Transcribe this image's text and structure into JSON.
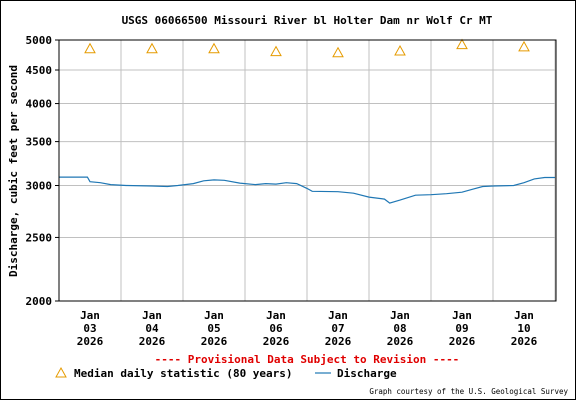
{
  "chart_data": {
    "type": "line",
    "title": "USGS 06066500 Missouri River bl Holter Dam nr Wolf Cr MT",
    "ylabel": "Discharge, cubic feet per second",
    "xlabel": "",
    "y_scale": "log",
    "ylim": [
      2000,
      5000
    ],
    "y_ticks": [
      2000,
      2500,
      3000,
      3500,
      4000,
      4500,
      5000
    ],
    "y_tick_labels": [
      "2000",
      "2500",
      "3000",
      "3500",
      "4000",
      "4500",
      "5000"
    ],
    "x_ticks": [
      {
        "month": "Jan",
        "day": "03",
        "year": "2026"
      },
      {
        "month": "Jan",
        "day": "04",
        "year": "2026"
      },
      {
        "month": "Jan",
        "day": "05",
        "year": "2026"
      },
      {
        "month": "Jan",
        "day": "06",
        "year": "2026"
      },
      {
        "month": "Jan",
        "day": "07",
        "year": "2026"
      },
      {
        "month": "Jan",
        "day": "08",
        "year": "2026"
      },
      {
        "month": "Jan",
        "day": "09",
        "year": "2026"
      },
      {
        "month": "Jan",
        "day": "10",
        "year": "2026"
      }
    ],
    "grid": true,
    "series": [
      {
        "name": "Discharge",
        "kind": "line",
        "color": "#1f77b4",
        "points": [
          {
            "x": "2026-01-02 12:00",
            "y": 3090
          },
          {
            "x": "2026-01-02 23:00",
            "y": 3090
          },
          {
            "x": "2026-01-03 00:00",
            "y": 3040
          },
          {
            "x": "2026-01-03 04:00",
            "y": 3030
          },
          {
            "x": "2026-01-03 08:00",
            "y": 3010
          },
          {
            "x": "2026-01-03 14:00",
            "y": 3000
          },
          {
            "x": "2026-01-04 00:00",
            "y": 2995
          },
          {
            "x": "2026-01-04 06:00",
            "y": 2990
          },
          {
            "x": "2026-01-04 10:00",
            "y": 3000
          },
          {
            "x": "2026-01-04 16:00",
            "y": 3020
          },
          {
            "x": "2026-01-04 20:00",
            "y": 3050
          },
          {
            "x": "2026-01-05 00:00",
            "y": 3060
          },
          {
            "x": "2026-01-05 04:00",
            "y": 3055
          },
          {
            "x": "2026-01-05 10:00",
            "y": 3025
          },
          {
            "x": "2026-01-05 16:00",
            "y": 3010
          },
          {
            "x": "2026-01-05 20:00",
            "y": 3020
          },
          {
            "x": "2026-01-06 00:00",
            "y": 3015
          },
          {
            "x": "2026-01-06 04:00",
            "y": 3030
          },
          {
            "x": "2026-01-06 08:00",
            "y": 3020
          },
          {
            "x": "2026-01-06 12:00",
            "y": 2970
          },
          {
            "x": "2026-01-06 14:00",
            "y": 2940
          },
          {
            "x": "2026-01-07 00:00",
            "y": 2935
          },
          {
            "x": "2026-01-07 06:00",
            "y": 2920
          },
          {
            "x": "2026-01-07 12:00",
            "y": 2880
          },
          {
            "x": "2026-01-07 18:00",
            "y": 2860
          },
          {
            "x": "2026-01-07 20:00",
            "y": 2820
          },
          {
            "x": "2026-01-08 00:00",
            "y": 2850
          },
          {
            "x": "2026-01-08 06:00",
            "y": 2900
          },
          {
            "x": "2026-01-08 12:00",
            "y": 2905
          },
          {
            "x": "2026-01-08 18:00",
            "y": 2915
          },
          {
            "x": "2026-01-09 00:00",
            "y": 2930
          },
          {
            "x": "2026-01-09 04:00",
            "y": 2960
          },
          {
            "x": "2026-01-09 08:00",
            "y": 2990
          },
          {
            "x": "2026-01-09 12:00",
            "y": 2995
          },
          {
            "x": "2026-01-09 20:00",
            "y": 3000
          },
          {
            "x": "2026-01-10 00:00",
            "y": 3030
          },
          {
            "x": "2026-01-10 04:00",
            "y": 3070
          },
          {
            "x": "2026-01-10 08:00",
            "y": 3085
          },
          {
            "x": "2026-01-10 12:00",
            "y": 3085
          }
        ]
      },
      {
        "name": "Median daily statistic (80 years)",
        "kind": "marker",
        "marker": "triangle",
        "color": "#e69b00",
        "points": [
          {
            "x": "2026-01-03 00:00",
            "y": 4850
          },
          {
            "x": "2026-01-04 00:00",
            "y": 4850
          },
          {
            "x": "2026-01-05 00:00",
            "y": 4850
          },
          {
            "x": "2026-01-06 00:00",
            "y": 4800
          },
          {
            "x": "2026-01-07 00:00",
            "y": 4780
          },
          {
            "x": "2026-01-08 00:00",
            "y": 4810
          },
          {
            "x": "2026-01-09 00:00",
            "y": 4920
          },
          {
            "x": "2026-01-10 00:00",
            "y": 4880
          }
        ]
      }
    ],
    "legend": [
      {
        "label": "Median daily statistic (80 years)",
        "symbol": "triangle"
      },
      {
        "label": "Discharge",
        "symbol": "line"
      }
    ],
    "legend_position": "bottom-center"
  },
  "notice": "---- Provisional Data Subject to Revision ----",
  "credit": "Graph courtesy of the U.S. Geological Survey",
  "colors": {
    "discharge": "#1f77b4",
    "median": "#e69b00",
    "notice": "#e00000",
    "grid": "#c0c0c0",
    "axis": "#000000"
  }
}
